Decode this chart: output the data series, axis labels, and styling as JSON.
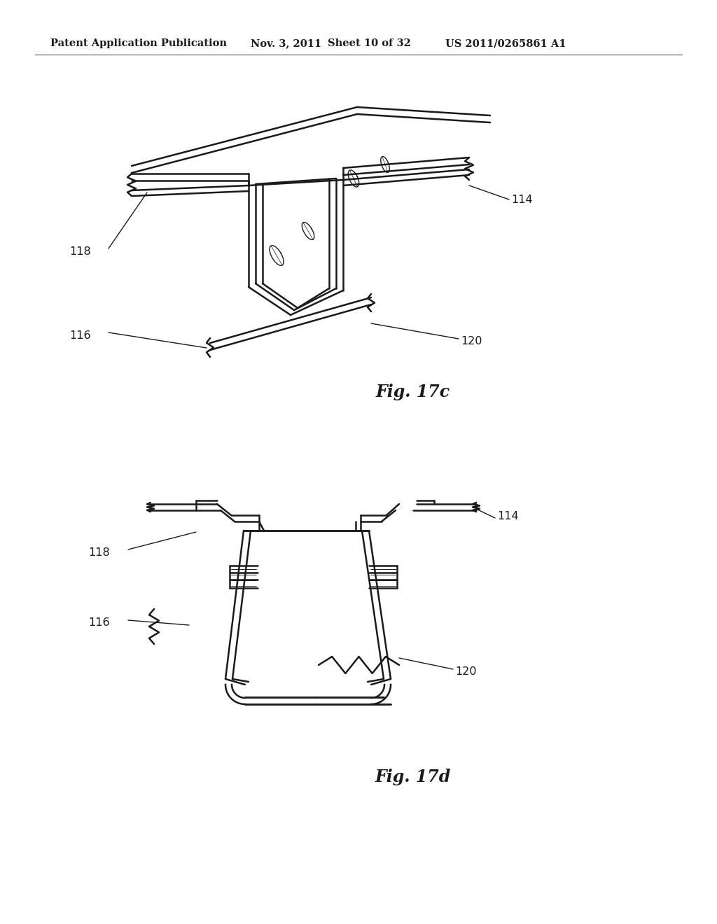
{
  "background_color": "#ffffff",
  "header_text": "Patent Application Publication",
  "header_date": "Nov. 3, 2011",
  "header_sheet": "Sheet 10 of 32",
  "header_patent": "US 2011/0265861 A1",
  "fig17c_label": "Fig. 17c",
  "fig17d_label": "Fig. 17d",
  "line_color": "#1a1a1a",
  "header_fontsize": 10.5,
  "label_fontsize": 11.5,
  "fig_label_fontsize": 17
}
